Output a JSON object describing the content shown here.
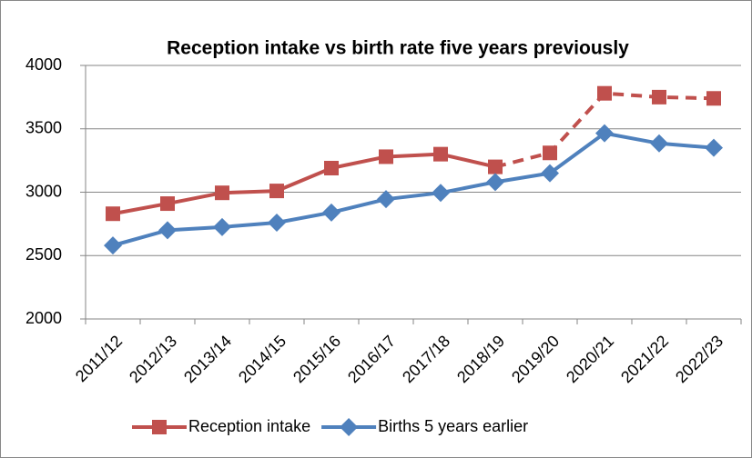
{
  "chart_data": {
    "type": "line",
    "title": "Reception intake vs birth rate five years previously",
    "categories": [
      "2011/12",
      "2012/13",
      "2013/14",
      "2014/15",
      "2015/16",
      "2016/17",
      "2017/18",
      "2018/19",
      "2019/20",
      "2020/21",
      "2021/22",
      "2022/23"
    ],
    "series": [
      {
        "name": "Reception intake",
        "color": "#c0504d",
        "marker": "square",
        "dashed_from": "2018/19",
        "values": [
          2830,
          2910,
          2995,
          3010,
          3190,
          3280,
          3300,
          3200,
          3310,
          3780,
          3750,
          3740
        ]
      },
      {
        "name": "Births 5 years earlier",
        "color": "#4f81bd",
        "marker": "diamond",
        "values": [
          2580,
          2700,
          2725,
          2760,
          2840,
          2945,
          2995,
          3080,
          3150,
          3465,
          3385,
          3350
        ]
      }
    ],
    "ylim": [
      2000,
      4000
    ],
    "yticks": [
      2000,
      2500,
      3000,
      3500,
      4000
    ],
    "grid": true,
    "legend": "bottom"
  }
}
